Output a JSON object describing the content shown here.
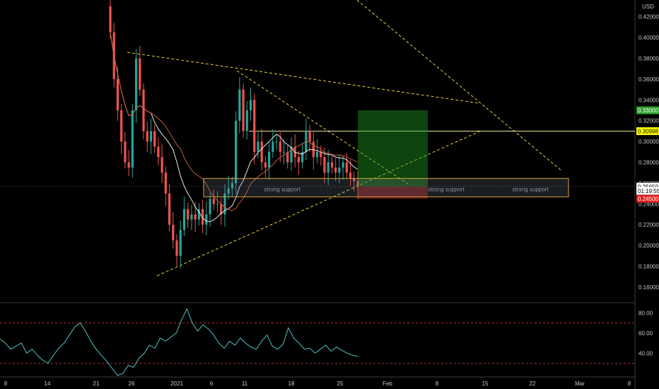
{
  "chart_data": {
    "type": "candlestick",
    "currency": "USD",
    "y_ticks": [
      0.16,
      0.18,
      0.2,
      0.22,
      0.24,
      0.26,
      0.28,
      0.3,
      0.32,
      0.34,
      0.36,
      0.38,
      0.4,
      0.42
    ],
    "x_ticks": [
      "8",
      "14",
      "21",
      "26",
      "2021",
      "6",
      "11",
      "18",
      "25",
      "Feb",
      "8",
      "15",
      "22",
      "Mar",
      "8"
    ],
    "ylim": [
      0.145,
      0.432
    ],
    "price_badges": [
      {
        "label": "0.33000",
        "value": 0.33,
        "color": "#2e9e2e",
        "text_color": "#ffffff"
      },
      {
        "label": "0.30998",
        "value": 0.30998,
        "color": "#ffff00",
        "text_color": "#000000"
      },
      {
        "label": "0.25682",
        "value": 0.25682,
        "color": "#3a3a3a",
        "text_color": "#dddddd"
      },
      {
        "label": "0.25659",
        "value": 0.25659,
        "color": "#ffffff",
        "text_color": "#000000"
      },
      {
        "label": "01:19:55",
        "value": 0.2526,
        "color": "#ffffff",
        "text_color": "#000000"
      },
      {
        "label": "0.24500",
        "value": 0.245,
        "color": "#e01e1e",
        "text_color": "#ffffff"
      }
    ],
    "support_zone": {
      "top": 0.2645,
      "bottom": 0.2468,
      "labels": [
        "strong support",
        "strong support",
        "strong support"
      ]
    },
    "horizontal_levels": [
      0.30998
    ],
    "close_series": [
      0.405,
      0.36,
      0.33,
      0.3,
      0.28,
      0.275,
      0.33,
      0.38,
      0.35,
      0.31,
      0.3,
      0.31,
      0.295,
      0.285,
      0.27,
      0.25,
      0.22,
      0.205,
      0.19,
      0.215,
      0.235,
      0.225,
      0.23,
      0.225,
      0.235,
      0.22,
      0.23,
      0.245,
      0.24,
      0.24,
      0.23,
      0.25,
      0.255,
      0.26,
      0.32,
      0.35,
      0.31,
      0.33,
      0.34,
      0.29,
      0.3,
      0.28,
      0.275,
      0.29,
      0.3,
      0.3,
      0.29,
      0.29,
      0.28,
      0.295,
      0.285,
      0.28,
      0.29,
      0.31,
      0.3,
      0.285,
      0.29,
      0.285,
      0.27,
      0.28,
      0.275,
      0.27,
      0.275,
      0.28,
      0.27,
      0.265,
      0.262,
      0.2568
    ],
    "rsi": {
      "levels": [
        80,
        60,
        40
      ],
      "upper": 70,
      "lower": 30,
      "values": [
        54,
        50,
        44,
        47,
        50,
        40,
        44,
        38,
        33,
        30,
        38,
        45,
        50,
        58,
        66,
        70,
        62,
        52,
        44,
        38,
        32,
        25,
        18,
        20,
        28,
        26,
        35,
        40,
        48,
        45,
        55,
        52,
        56,
        60,
        73,
        84,
        70,
        62,
        68,
        64,
        58,
        50,
        45,
        52,
        48,
        55,
        50,
        46,
        44,
        52,
        58,
        47,
        44,
        49,
        65,
        55,
        50,
        44,
        45,
        40,
        44,
        48,
        42,
        46,
        43,
        40,
        38,
        37
      ]
    }
  }
}
